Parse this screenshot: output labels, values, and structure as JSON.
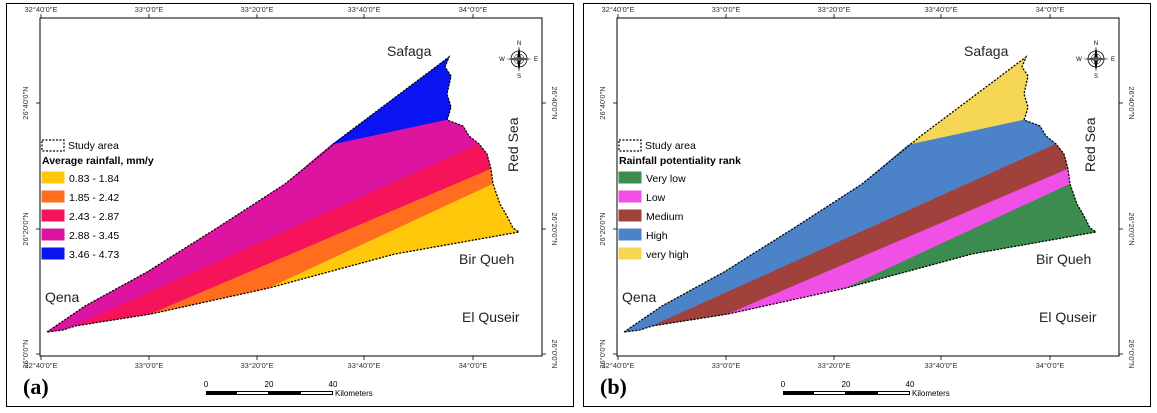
{
  "panels": [
    {
      "label": "(a)",
      "legend_study_area": "Study area",
      "legend_title": "Average rainfall, mm/y",
      "classes": [
        {
          "label": "0.83 - 1.84",
          "color": "#FFC80A"
        },
        {
          "label": "1.85 - 2.42",
          "color": "#FF6E1E"
        },
        {
          "label": "2.43 - 2.87",
          "color": "#F5145A"
        },
        {
          "label": "2.88 - 3.45",
          "color": "#DC14A0"
        },
        {
          "label": "3.46 - 4.73",
          "color": "#0A14F0"
        }
      ]
    },
    {
      "label": "(b)",
      "legend_study_area": "Study area",
      "legend_title": "Rainfall potentiality rank",
      "classes": [
        {
          "label": "Very low",
          "color": "#3C8C50"
        },
        {
          "label": "Low",
          "color": "#F050E6"
        },
        {
          "label": "Medium",
          "color": "#A0413C"
        },
        {
          "label": "High",
          "color": "#4B82C8"
        },
        {
          "label": "very high",
          "color": "#F5D755"
        }
      ]
    }
  ],
  "places": {
    "safaga": "Safaga",
    "red_sea": "Red Sea",
    "bir_queh": "Bir Queh",
    "qena": "Qena",
    "el_quseir": "El Quseir"
  },
  "ticks": {
    "lon": [
      "32°40'0\"E",
      "33°0'0\"E",
      "33°20'0\"E",
      "33°40'0\"E",
      "34°0'0\"E"
    ],
    "lat": [
      "26°40'0\"N",
      "26°20'0\"N",
      "26°0'0\"N"
    ]
  },
  "scale_bar": {
    "labels": [
      "0",
      "20",
      "40"
    ],
    "unit": "Kilometers"
  },
  "compass": {
    "n": "N",
    "s": "S",
    "e": "E",
    "w": "W"
  }
}
